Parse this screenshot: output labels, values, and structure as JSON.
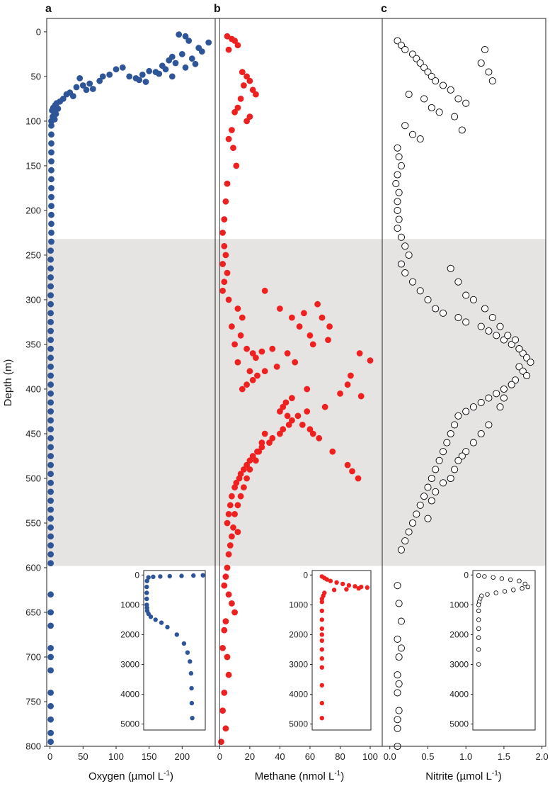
{
  "figure": {
    "y_axis_label": "Depth (m)",
    "shaded_band_depth": [
      232,
      598
    ]
  },
  "chart_data": [
    {
      "type": "scatter",
      "panel_label": "a",
      "xlabel": "Oxygen (µmol L",
      "xlabel_sup": "-1",
      "xlabel_end": ")",
      "ylabel": "Depth (m)",
      "xlim": [
        -5,
        250
      ],
      "ylim": [
        800,
        -15
      ],
      "xticks": [
        0,
        50,
        100,
        150,
        200
      ],
      "yticks": [
        0,
        50,
        100,
        150,
        200,
        250,
        300,
        350,
        400,
        450,
        500,
        550,
        600,
        650,
        700,
        750,
        800
      ],
      "marker": "filled",
      "color": "#2e5597",
      "series": [
        {
          "x": [
            195,
            205,
            210,
            225,
            240,
            200,
            215,
            230,
            185,
            190,
            170,
            180,
            205,
            220,
            175,
            160,
            150,
            165,
            185,
            140,
            130,
            120,
            135,
            145,
            110,
            100,
            90,
            75,
            80,
            60,
            50,
            45,
            40,
            55,
            65,
            30,
            25,
            35,
            20,
            15,
            10,
            8,
            5,
            3,
            12,
            6,
            4,
            2,
            9,
            7
          ],
          "y": [
            3,
            5,
            10,
            18,
            12,
            25,
            30,
            22,
            28,
            35,
            38,
            32,
            40,
            36,
            42,
            45,
            44,
            47,
            50,
            48,
            52,
            50,
            54,
            56,
            40,
            42,
            48,
            55,
            50,
            58,
            60,
            52,
            62,
            65,
            64,
            68,
            70,
            72,
            75,
            78,
            80,
            82,
            85,
            88,
            86,
            90,
            95,
            100,
            92,
            98
          ]
        }
      ],
      "deep_profile": {
        "depth": [
          105,
          115,
          125,
          135,
          145,
          155,
          165,
          175,
          185,
          195,
          205,
          215,
          225,
          235,
          245,
          255,
          265,
          275,
          285,
          295,
          305,
          315,
          325,
          335,
          345,
          355,
          365,
          375,
          385,
          395,
          405,
          415,
          425,
          435,
          445,
          455,
          465,
          475,
          485,
          495,
          505,
          515,
          525,
          535,
          545,
          555,
          565,
          575,
          585,
          595,
          630,
          650,
          665,
          690,
          700,
          715,
          740,
          755,
          770,
          785,
          795
        ],
        "value": [
          2,
          2,
          2,
          2,
          2,
          2,
          2,
          2,
          2,
          2,
          2,
          2,
          2,
          2,
          1,
          1,
          1,
          1,
          1,
          1,
          1,
          1,
          1,
          1,
          1,
          1,
          1,
          1,
          1,
          1,
          1,
          1,
          1,
          1,
          1,
          1,
          1,
          1,
          1,
          1,
          1,
          1,
          1,
          1,
          1,
          1,
          1,
          1,
          1,
          1,
          1,
          1,
          1,
          1,
          1,
          1,
          1,
          1,
          1,
          1,
          1
        ]
      },
      "inset": {
        "xlim": [
          -10,
          250
        ],
        "ylim": [
          5200,
          -150
        ],
        "yticks": [
          0,
          1000,
          2000,
          3000,
          4000,
          5000
        ],
        "x": [
          240,
          200,
          150,
          100,
          60,
          30,
          10,
          4,
          3,
          3,
          3,
          3,
          4,
          5,
          10,
          20,
          40,
          65,
          90,
          130,
          160,
          175,
          185,
          190,
          192,
          193,
          195
        ],
        "y": [
          10,
          20,
          30,
          40,
          50,
          60,
          80,
          200,
          400,
          600,
          800,
          1000,
          1100,
          1200,
          1300,
          1400,
          1500,
          1600,
          1750,
          2000,
          2300,
          2600,
          2900,
          3300,
          3800,
          4300,
          4800
        ]
      }
    },
    {
      "type": "scatter",
      "panel_label": "b",
      "xlabel": "Methane (nmol L",
      "xlabel_sup": "-1",
      "xlabel_end": ")",
      "xlim": [
        -3,
        108
      ],
      "ylim": [
        800,
        -15
      ],
      "xticks": [
        0,
        20,
        40,
        60,
        80,
        100
      ],
      "marker": "filled",
      "color": "#ee2020",
      "series": [
        {
          "x": [
            5,
            8,
            10,
            12,
            6,
            15,
            18,
            20,
            22,
            24,
            16,
            14,
            12,
            10,
            20,
            18,
            8,
            6,
            9,
            11,
            5,
            4,
            3,
            2,
            3,
            4,
            2,
            5,
            3,
            2,
            6,
            12,
            15,
            8,
            30,
            14,
            10,
            18,
            22,
            12,
            20,
            24,
            28,
            35,
            40,
            48,
            53,
            56,
            65,
            68,
            73,
            60,
            62,
            72,
            45,
            50,
            38,
            30,
            25,
            22,
            18,
            15,
            100,
            93,
            87,
            85,
            80,
            70,
            58,
            52,
            46,
            42,
            40,
            35,
            33,
            28,
            25,
            22,
            20,
            18,
            16,
            14,
            13,
            11,
            10,
            8,
            7,
            6,
            5,
            12,
            42,
            45,
            48,
            55,
            60,
            62,
            66,
            75,
            85,
            88,
            92,
            94,
            58,
            48,
            44,
            40,
            30,
            28,
            26,
            24,
            20,
            18,
            16,
            14,
            12,
            10,
            9,
            8,
            7,
            6,
            5,
            4,
            3,
            6,
            8,
            10,
            4,
            3,
            2,
            5,
            6,
            3,
            2,
            4,
            1
          ],
          "y": [
            5,
            8,
            10,
            15,
            20,
            45,
            50,
            55,
            65,
            70,
            60,
            75,
            85,
            90,
            95,
            100,
            110,
            120,
            130,
            150,
            170,
            190,
            210,
            225,
            240,
            250,
            260,
            270,
            280,
            290,
            300,
            310,
            320,
            330,
            290,
            340,
            350,
            355,
            360,
            370,
            380,
            365,
            358,
            355,
            310,
            320,
            330,
            315,
            305,
            320,
            330,
            340,
            350,
            345,
            360,
            370,
            375,
            380,
            385,
            390,
            395,
            400,
            368,
            360,
            385,
            395,
            405,
            420,
            425,
            430,
            440,
            445,
            450,
            455,
            460,
            465,
            470,
            475,
            480,
            485,
            490,
            495,
            500,
            505,
            510,
            520,
            530,
            540,
            550,
            560,
            420,
            430,
            435,
            440,
            445,
            450,
            455,
            470,
            485,
            492,
            500,
            408,
            400,
            410,
            415,
            425,
            450,
            460,
            470,
            480,
            490,
            500,
            510,
            520,
            530,
            540,
            555,
            565,
            575,
            585,
            600,
            610,
            620,
            630,
            640,
            650,
            660,
            670,
            690,
            700,
            720,
            740,
            760,
            780,
            795
          ]
        }
      ],
      "inset": {
        "xlim": [
          60,
          108
        ],
        "ylim": [
          5200,
          -150
        ],
        "yticks": [
          0,
          1000,
          2000,
          3000,
          4000,
          5000
        ],
        "x": [
          68,
          70,
          72,
          75,
          80,
          85,
          90,
          95,
          100,
          105,
          98,
          88,
          78,
          70,
          69,
          68,
          68,
          68,
          68,
          68,
          68,
          68,
          68,
          68,
          68,
          68,
          68,
          68
        ],
        "y": [
          50,
          100,
          150,
          200,
          250,
          300,
          350,
          380,
          400,
          420,
          450,
          480,
          500,
          600,
          700,
          800,
          900,
          1200,
          1500,
          1800,
          2000,
          2200,
          2500,
          2800,
          3100,
          3700,
          4300,
          4800
        ]
      }
    },
    {
      "type": "scatter",
      "panel_label": "c",
      "xlabel": "Nitrite (µmol L",
      "xlabel_sup": "-1",
      "xlabel_end": ")",
      "xlim": [
        -0.1,
        2.05
      ],
      "ylim": [
        800,
        -15
      ],
      "xticks": [
        0.0,
        0.5,
        1.0,
        1.5,
        2.0
      ],
      "marker": "open",
      "color": "#000000",
      "series": [
        {
          "x": [
            0.1,
            0.15,
            0.2,
            0.3,
            0.35,
            0.4,
            0.45,
            0.5,
            0.55,
            0.6,
            0.7,
            0.8,
            0.9,
            1.0,
            1.2,
            1.3,
            1.35,
            0.25,
            0.45,
            0.55,
            0.65,
            0.85,
            0.95,
            1.25,
            0.2,
            0.3,
            0.4,
            0.1,
            0.12,
            0.15,
            0.1,
            0.08,
            0.12,
            0.1,
            0.1,
            0.12,
            0.1,
            0.15,
            0.2,
            0.25,
            0.15,
            0.2,
            0.3,
            0.4,
            0.5,
            0.6,
            0.7,
            0.9,
            1.0,
            1.2,
            1.3,
            1.4,
            1.5,
            1.6,
            1.7,
            1.75,
            1.8,
            1.85,
            1.7,
            1.75,
            1.8,
            1.65,
            1.6,
            1.5,
            1.4,
            1.3,
            1.2,
            1.1,
            1.0,
            0.9,
            0.85,
            0.8,
            0.75,
            0.7,
            0.65,
            0.6,
            0.55,
            0.5,
            0.45,
            0.4,
            0.35,
            0.3,
            0.25,
            0.2,
            0.15,
            0.8,
            0.9,
            1.0,
            1.1,
            1.25,
            1.35,
            1.45,
            1.55,
            1.65,
            1.7,
            1.6,
            1.5,
            1.45,
            1.3,
            1.2,
            1.1,
            1.0,
            0.95,
            0.9,
            0.85,
            0.8,
            0.7,
            0.6,
            0.55,
            0.5,
            0.1,
            0.12,
            0.15,
            0.1,
            0.12,
            0.1,
            0.1,
            0.12,
            0.1,
            0.1,
            0.15,
            0.12,
            0.1
          ],
          "y": [
            10,
            15,
            20,
            25,
            30,
            35,
            40,
            45,
            50,
            55,
            60,
            65,
            75,
            80,
            35,
            45,
            55,
            70,
            75,
            85,
            90,
            95,
            110,
            20,
            105,
            115,
            120,
            130,
            140,
            150,
            160,
            170,
            180,
            190,
            200,
            210,
            220,
            230,
            240,
            250,
            260,
            270,
            280,
            290,
            300,
            310,
            315,
            320,
            325,
            330,
            335,
            340,
            345,
            350,
            355,
            360,
            365,
            370,
            375,
            380,
            385,
            390,
            395,
            400,
            405,
            410,
            415,
            420,
            425,
            430,
            440,
            450,
            460,
            470,
            480,
            490,
            500,
            510,
            520,
            530,
            540,
            550,
            560,
            570,
            580,
            265,
            280,
            295,
            300,
            310,
            320,
            330,
            340,
            345,
            355,
            395,
            410,
            420,
            440,
            450,
            460,
            470,
            475,
            480,
            490,
            500,
            505,
            515,
            525,
            545,
            620,
            640,
            660,
            680,
            700,
            720,
            740,
            760,
            780,
            800,
            690,
            730,
            770
          ]
        }
      ],
      "inset": {
        "xlim": [
          -0.1,
          2.05
        ],
        "ylim": [
          5200,
          -150
        ],
        "yticks": [
          0,
          1000,
          2000,
          3000,
          4000,
          5000
        ],
        "x": [
          0.1,
          0.3,
          0.6,
          0.9,
          1.2,
          1.5,
          1.7,
          1.8,
          1.6,
          1.3,
          1.0,
          0.7,
          0.4,
          0.2,
          0.15,
          0.12,
          0.1,
          0.1,
          0.1,
          0.1,
          0.1,
          0.1,
          0.1
        ],
        "y": [
          20,
          50,
          80,
          120,
          160,
          200,
          300,
          400,
          450,
          500,
          550,
          600,
          650,
          700,
          800,
          900,
          1000,
          1200,
          1500,
          1800,
          2100,
          2500,
          3000
        ]
      }
    }
  ]
}
